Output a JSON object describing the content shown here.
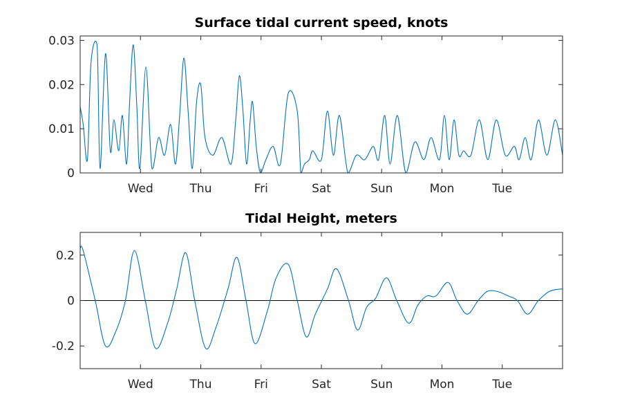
{
  "chart_data": [
    {
      "type": "line",
      "title": "Surface tidal current speed, knots",
      "xlabel": "",
      "ylabel": "",
      "xlim": [
        0,
        8
      ],
      "ylim": [
        0,
        0.031
      ],
      "yticks": [
        0,
        0.01,
        0.02,
        0.03
      ],
      "ytick_labels": [
        "0",
        "0.01",
        "0.02",
        "0.03"
      ],
      "xticks": [
        1,
        2,
        3,
        4,
        5,
        6,
        7
      ],
      "xtick_labels": [
        "Wed",
        "Thu",
        "Fri",
        "Sat",
        "Sun",
        "Mon",
        "Tue"
      ],
      "grid": false,
      "color": "#0072BD",
      "series": [
        {
          "x": [
            0,
            0.05,
            0.12,
            0.18,
            0.28,
            0.33,
            0.42,
            0.5,
            0.56,
            0.64,
            0.7,
            0.77,
            0.82,
            0.88,
            0.94,
            0.99,
            1.09,
            1.19,
            1.3,
            1.4,
            1.5,
            1.58,
            1.65,
            1.72,
            1.79,
            1.86,
            1.93,
            2.0,
            2.07,
            2.2,
            2.35,
            2.5,
            2.58,
            2.64,
            2.7,
            2.76,
            2.82,
            2.86,
            2.92,
            2.99,
            3.08,
            3.2,
            3.32,
            3.45,
            3.6,
            3.66,
            3.72,
            3.8,
            3.86,
            4.0,
            4.1,
            4.2,
            4.3,
            4.44,
            4.58,
            4.72,
            4.86,
            4.95,
            5.05,
            5.14,
            5.26,
            5.4,
            5.55,
            5.7,
            5.82,
            5.96,
            6.04,
            6.12,
            6.2,
            6.28,
            6.36,
            6.48,
            6.62,
            6.76,
            6.9,
            7.05,
            7.2,
            7.28,
            7.38,
            7.48,
            7.6,
            7.74,
            7.88,
            8.0
          ],
          "y": [
            0.015,
            0.011,
            0.003,
            0.025,
            0.029,
            0.001,
            0.027,
            0.005,
            0.012,
            0.005,
            0.013,
            0.002,
            0.016,
            0.029,
            0.015,
            0.001,
            0.024,
            0.001,
            0.008,
            0.004,
            0.011,
            0.002,
            0.013,
            0.026,
            0.014,
            0.001,
            0.016,
            0.02,
            0.008,
            0.004,
            0.008,
            0.002,
            0.012,
            0.022,
            0.014,
            0.002,
            0.012,
            0.016,
            0.006,
            0.0,
            0.003,
            0.006,
            0.002,
            0.018,
            0.014,
            0.0,
            0.002,
            0.003,
            0.005,
            0.003,
            0.014,
            0.004,
            0.013,
            0.0,
            0.004,
            0.003,
            0.006,
            0.003,
            0.013,
            0.002,
            0.013,
            0.0,
            0.007,
            0.003,
            0.008,
            0.003,
            0.013,
            0.003,
            0.012,
            0.004,
            0.005,
            0.004,
            0.012,
            0.003,
            0.012,
            0.004,
            0.006,
            0.003,
            0.008,
            0.003,
            0.012,
            0.004,
            0.012,
            0.004
          ]
        }
      ]
    },
    {
      "type": "line",
      "title": "Tidal Height, meters",
      "xlabel": "",
      "ylabel": "",
      "xlim": [
        0,
        8
      ],
      "ylim": [
        -0.3,
        0.3
      ],
      "yticks": [
        -0.2,
        0,
        0.2
      ],
      "ytick_labels": [
        "-0.2",
        "0",
        "0.2"
      ],
      "xticks": [
        1,
        2,
        3,
        4,
        5,
        6,
        7
      ],
      "xtick_labels": [
        "Wed",
        "Thu",
        "Fri",
        "Sat",
        "Sun",
        "Mon",
        "Tue"
      ],
      "grid": false,
      "zero_line": true,
      "color": "#0072BD",
      "series": [
        {
          "x": [
            0,
            0.05,
            0.25,
            0.42,
            0.6,
            0.75,
            0.9,
            1.08,
            1.25,
            1.45,
            1.6,
            1.75,
            1.9,
            2.08,
            2.25,
            2.45,
            2.6,
            2.75,
            2.9,
            3.1,
            3.25,
            3.45,
            3.6,
            3.75,
            3.9,
            4.1,
            4.25,
            4.45,
            4.6,
            4.75,
            4.9,
            5.08,
            5.25,
            5.45,
            5.6,
            5.75,
            5.9,
            6.1,
            6.25,
            6.42,
            6.6,
            6.75,
            6.92,
            7.1,
            7.25,
            7.42,
            7.6,
            7.78,
            7.95,
            8.0
          ],
          "y": [
            0.23,
            0.22,
            0.0,
            -0.2,
            -0.13,
            0.0,
            0.22,
            0.0,
            -0.21,
            -0.1,
            0.05,
            0.21,
            0.0,
            -0.21,
            -0.12,
            0.05,
            0.19,
            0.0,
            -0.19,
            -0.05,
            0.1,
            0.16,
            0.0,
            -0.16,
            -0.06,
            0.05,
            0.14,
            0.0,
            -0.13,
            -0.03,
            0.01,
            0.1,
            0.0,
            -0.1,
            -0.02,
            0.02,
            0.02,
            0.08,
            0.0,
            -0.06,
            0.0,
            0.04,
            0.04,
            0.02,
            0.0,
            -0.06,
            0.0,
            0.04,
            0.05,
            0.05
          ]
        }
      ]
    }
  ]
}
